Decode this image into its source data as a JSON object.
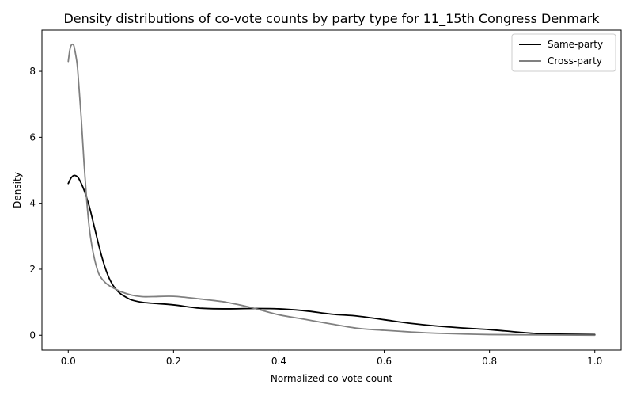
{
  "chart_data": {
    "type": "line",
    "title": "Density distributions of co-vote counts by party type for 11_15th Congress Denmark",
    "xlabel": "Normalized co-vote count",
    "ylabel": "Density",
    "xlim": [
      -0.05,
      1.05
    ],
    "ylim": [
      -0.45,
      9.25
    ],
    "xticks": [
      0.0,
      0.2,
      0.4,
      0.6,
      0.8,
      1.0
    ],
    "xtick_labels": [
      "0.0",
      "0.2",
      "0.4",
      "0.6",
      "0.8",
      "1.0"
    ],
    "yticks": [
      0,
      2,
      4,
      6,
      8
    ],
    "ytick_labels": [
      "0",
      "2",
      "4",
      "6",
      "8"
    ],
    "grid": false,
    "legend_position": "top-right",
    "series": [
      {
        "name": "Same-party",
        "color": "#000000",
        "x": [
          0.0,
          0.005,
          0.01,
          0.015,
          0.02,
          0.03,
          0.04,
          0.05,
          0.06,
          0.07,
          0.08,
          0.09,
          0.1,
          0.11,
          0.12,
          0.14,
          0.16,
          0.2,
          0.25,
          0.3,
          0.35,
          0.4,
          0.45,
          0.5,
          0.55,
          0.6,
          0.65,
          0.7,
          0.75,
          0.8,
          0.85,
          0.9,
          0.95,
          1.0
        ],
        "y": [
          4.6,
          4.76,
          4.84,
          4.83,
          4.75,
          4.4,
          3.9,
          3.25,
          2.6,
          2.05,
          1.65,
          1.4,
          1.25,
          1.15,
          1.07,
          1.0,
          0.97,
          0.92,
          0.82,
          0.8,
          0.81,
          0.8,
          0.74,
          0.64,
          0.58,
          0.47,
          0.36,
          0.28,
          0.22,
          0.17,
          0.1,
          0.04,
          0.03,
          0.02
        ]
      },
      {
        "name": "Cross-party",
        "color": "#808080",
        "x": [
          0.0,
          0.003,
          0.006,
          0.01,
          0.013,
          0.017,
          0.02,
          0.025,
          0.03,
          0.035,
          0.04,
          0.045,
          0.05,
          0.055,
          0.06,
          0.07,
          0.08,
          0.09,
          0.1,
          0.12,
          0.14,
          0.16,
          0.2,
          0.25,
          0.3,
          0.35,
          0.4,
          0.45,
          0.5,
          0.55,
          0.6,
          0.65,
          0.7,
          0.8,
          0.9,
          1.0
        ],
        "y": [
          8.3,
          8.65,
          8.8,
          8.8,
          8.6,
          8.2,
          7.6,
          6.5,
          5.2,
          4.1,
          3.25,
          2.7,
          2.3,
          2.0,
          1.8,
          1.6,
          1.48,
          1.4,
          1.32,
          1.22,
          1.17,
          1.17,
          1.18,
          1.1,
          1.0,
          0.83,
          0.62,
          0.48,
          0.34,
          0.21,
          0.15,
          0.1,
          0.06,
          0.02,
          0.01,
          0.0
        ]
      }
    ]
  }
}
